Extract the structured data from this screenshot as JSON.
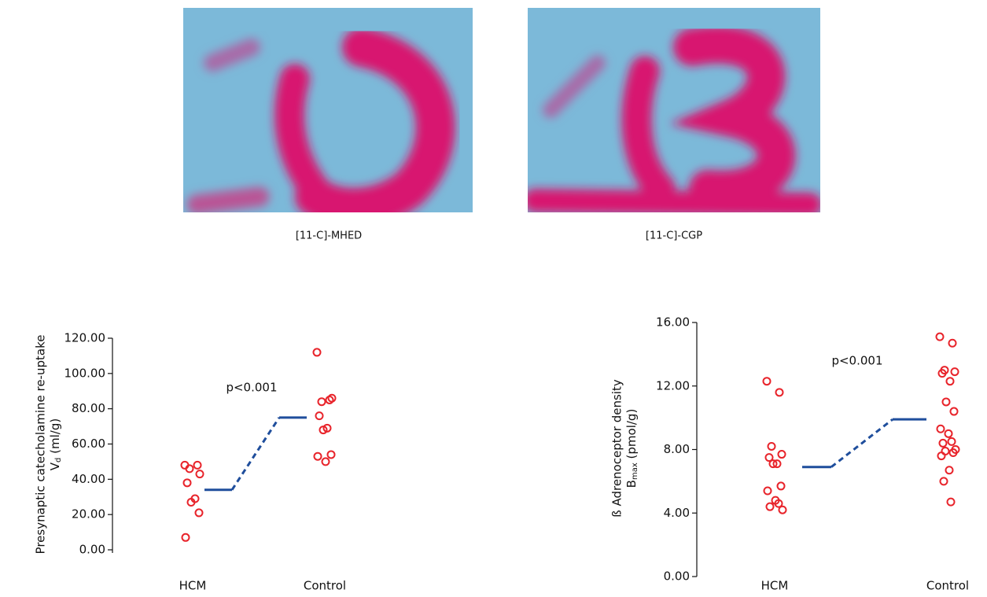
{
  "images": [
    {
      "caption": "[11-C]-MHED"
    },
    {
      "caption": "[11-C]-CGP"
    }
  ],
  "chart_data": [
    {
      "type": "dotplot",
      "y_label": "Presynaptic catecholamine re-uptake",
      "y_unit": [
        "V",
        "d",
        " (ml/g)"
      ],
      "annotation": "p<0.001",
      "categories": [
        "HCM",
        "Control"
      ],
      "series": [
        {
          "color": "#e8242b",
          "values": [
            [
              48,
              48,
              46,
              43,
              38,
              29,
              27,
              21,
              7
            ],
            [
              112,
              85,
              84,
              86,
              76,
              69,
              68,
              54,
              53,
              50
            ]
          ]
        }
      ],
      "means": {
        "color": "#1f4e9c",
        "values": [
          34,
          75
        ]
      },
      "ylim": [
        0,
        120
      ],
      "yticks": [
        {
          "value": 0,
          "label": "0.00"
        },
        {
          "value": 20,
          "label": "20.00"
        },
        {
          "value": 40,
          "label": "40.00"
        },
        {
          "value": 60,
          "label": "60.00"
        },
        {
          "value": 80,
          "label": "80.00"
        },
        {
          "value": 100,
          "label": "100.00"
        },
        {
          "value": 120,
          "label": "120.00"
        }
      ]
    },
    {
      "type": "dotplot",
      "y_label": "ß Adrenoceptor density",
      "y_unit": [
        "B",
        "max",
        " (pmol/g)"
      ],
      "annotation": "p<0.001",
      "categories": [
        "HCM",
        "Control"
      ],
      "series": [
        {
          "color": "#e8242b",
          "values": [
            [
              12.3,
              11.6,
              8.2,
              7.7,
              7.5,
              7.1,
              7.1,
              5.7,
              5.4,
              4.8,
              4.6,
              4.4,
              4.2
            ],
            [
              15.1,
              14.7,
              13.0,
              12.9,
              12.8,
              12.3,
              11.0,
              10.4,
              9.3,
              9.0,
              8.5,
              8.4,
              8.0,
              7.9,
              7.8,
              7.6,
              6.7,
              6.0,
              4.7
            ]
          ]
        }
      ],
      "means": {
        "color": "#1f4e9c",
        "values": [
          6.9,
          9.9
        ]
      },
      "ylim": [
        0,
        16
      ],
      "yticks": [
        {
          "value": 0,
          "label": "0.00"
        },
        {
          "value": 4,
          "label": "4.00"
        },
        {
          "value": 8,
          "label": "8.00"
        },
        {
          "value": 12,
          "label": "12.00"
        },
        {
          "value": 16,
          "label": "16.00"
        }
      ]
    }
  ]
}
